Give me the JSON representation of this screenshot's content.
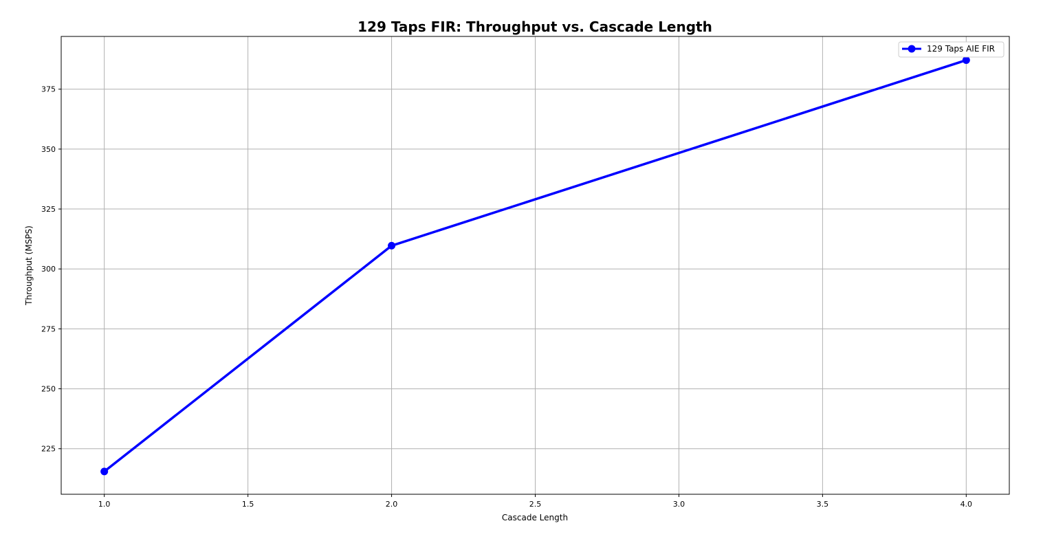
{
  "chart_data": {
    "type": "line",
    "title": "129 Taps FIR: Throughput vs. Cascade Length",
    "xlabel": "Cascade Length",
    "ylabel": "Throughput (MSPS)",
    "xlim": [
      0.85,
      4.15
    ],
    "ylim": [
      206,
      397
    ],
    "xticks": [
      1.0,
      1.5,
      2.0,
      2.5,
      3.0,
      3.5,
      4.0
    ],
    "xtick_labels": [
      "1.0",
      "1.5",
      "2.0",
      "2.5",
      "3.0",
      "3.5",
      "4.0"
    ],
    "yticks": [
      225,
      250,
      275,
      300,
      325,
      350,
      375
    ],
    "ytick_labels": [
      "225",
      "250",
      "275",
      "300",
      "325",
      "350",
      "375"
    ],
    "grid": true,
    "legend_position": "top-right",
    "series": [
      {
        "name": "129 Taps AIE FIR",
        "color": "#0000ff",
        "marker": "circle",
        "x": [
          1,
          2,
          4
        ],
        "y": [
          215.5,
          309.7,
          387.1
        ]
      }
    ]
  }
}
